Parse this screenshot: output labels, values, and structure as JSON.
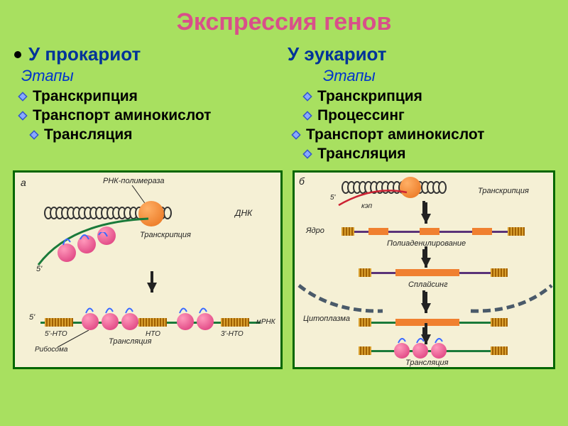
{
  "title": "Экспрессия генов",
  "colors": {
    "bg": "#a8e060",
    "title": "#d94f8a",
    "heading": "#003399",
    "stages": "#0033cc",
    "border": "#006600",
    "diagram_bg": "#f5f0d5",
    "diamond_outer": "#3355cc",
    "diamond_inner": "#88aaff",
    "orange_ball": "#e8701a",
    "pink_ball": "#d93377",
    "strand_green": "#1a7a3a",
    "strand_red": "#cc2233",
    "strand_purple": "#5a3378"
  },
  "left": {
    "heading": "У прокариот",
    "stages_label": "Этапы",
    "items": [
      {
        "text": "Транскрипция",
        "indent": false
      },
      {
        "text": "Транспорт аминокислот",
        "indent": false
      },
      {
        "text": "Трансляция",
        "indent": true
      }
    ]
  },
  "right": {
    "heading": "У эукариот",
    "stages_label": "Этапы",
    "items": [
      {
        "text": "Транскрипция",
        "indent": true
      },
      {
        "text": "Процессинг",
        "indent": true
      },
      {
        "text": "Транспорт аминокислот",
        "indent": false
      },
      {
        "text": "Трансляция",
        "indent": true
      }
    ]
  },
  "diagram_a": {
    "panel_label": "а",
    "labels": {
      "rna_polymerase": "РНК-полимераза",
      "dna": "ДНК",
      "transcription": "Транскрипция",
      "five_prime": "5'",
      "five_nto": "5'-НТО",
      "nto": "НТО",
      "three_nto": "3'-НТО",
      "mrna": "мРНК",
      "ribosome": "Рибосома",
      "translation": "Трансляция"
    }
  },
  "diagram_b": {
    "panel_label": "б",
    "labels": {
      "five_prime": "5'",
      "cap": "кэп",
      "transcription": "Транскрипция",
      "nucleus": "Ядро",
      "polyadenylation": "Полиаденилирование",
      "splicing": "Сплайсинг",
      "cytoplasm": "Цитоплазма",
      "translation": "Трансляция"
    }
  }
}
